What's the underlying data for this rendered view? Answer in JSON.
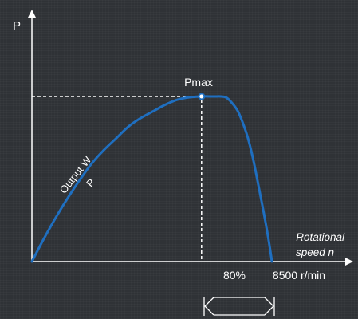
{
  "chart_data": {
    "type": "line",
    "ylabel": "P",
    "peak_label": "Pmax",
    "curve_label_line1": "Output W",
    "curve_label_line2": "P",
    "xlabel_line1": "Rotational",
    "xlabel_line2": "speed n",
    "tick_labels": [
      "80%",
      "8500 r/min"
    ],
    "xlim": [
      0,
      100
    ],
    "ylim": [
      0,
      100
    ],
    "series": [
      {
        "x": [
          0,
          5,
          10,
          15,
          20,
          25,
          30,
          35,
          40,
          45,
          50,
          55,
          60,
          65,
          70,
          75,
          78,
          80,
          82,
          85,
          88,
          90,
          92,
          94,
          96,
          98,
          99
        ],
        "y": [
          0,
          14,
          27,
          39,
          50,
          60,
          68,
          75,
          82,
          87,
          91,
          95,
          98,
          99.5,
          100,
          100,
          100,
          99.5,
          97,
          91,
          80,
          70,
          57,
          42,
          27,
          10,
          0
        ],
        "color": "#1f6fc0"
      }
    ],
    "peak": {
      "x": 70,
      "y": 100
    },
    "marked_x": 70,
    "end_x": 99
  }
}
